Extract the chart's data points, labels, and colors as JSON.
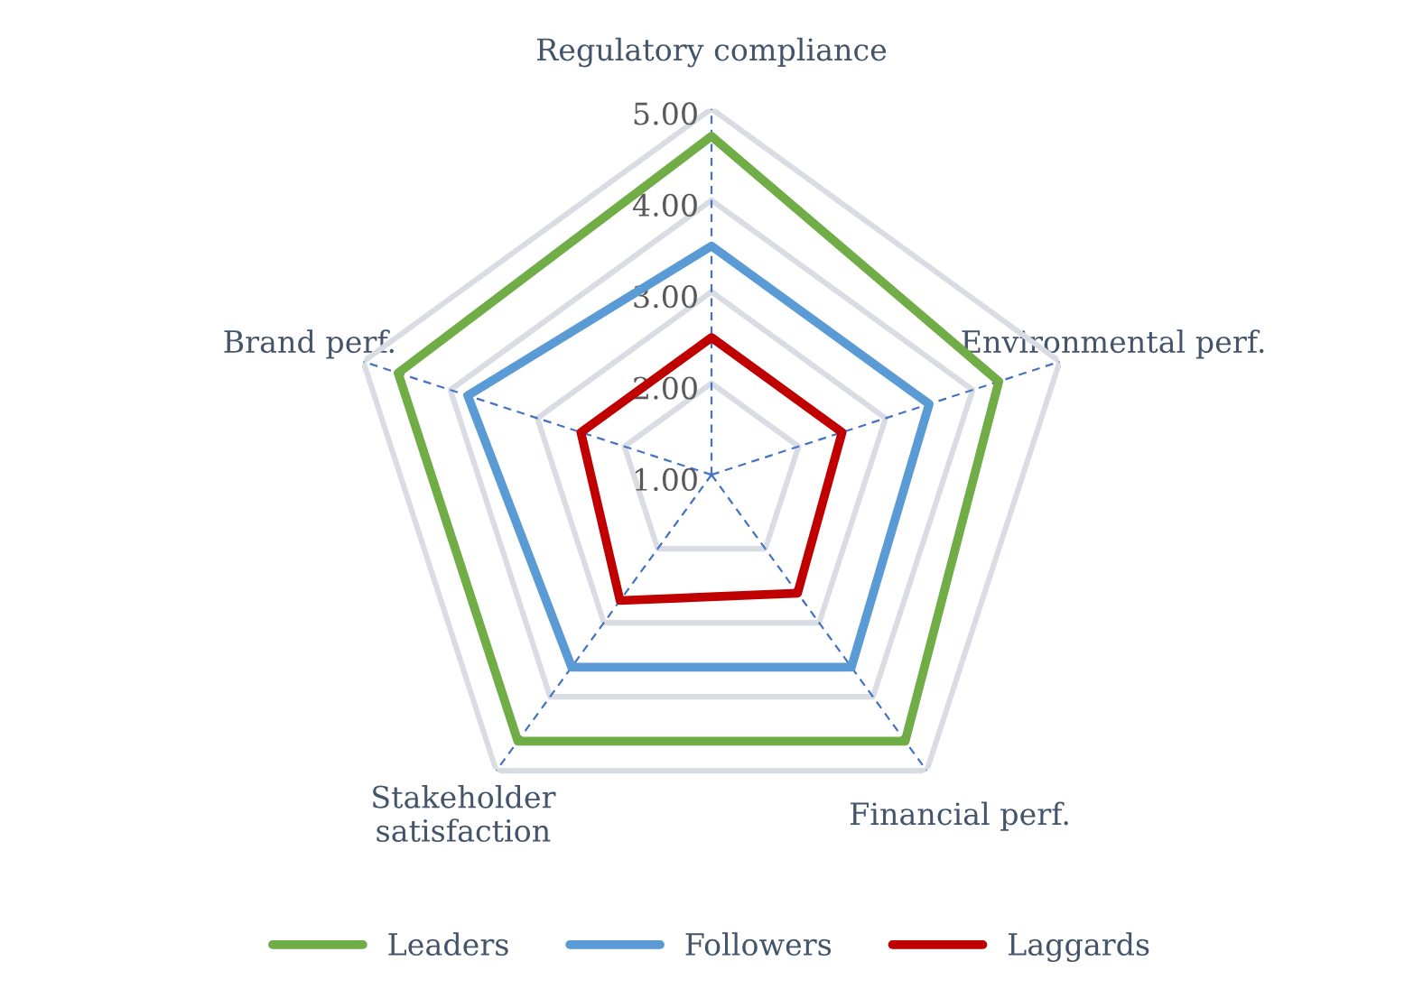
{
  "chart_data": {
    "type": "radar",
    "categories": [
      "Regulatory compliance",
      "Environmental perf.",
      "Financial perf.",
      "Stakeholder\nsatisfaction",
      "Brand perf."
    ],
    "series": [
      {
        "name": "Leaders",
        "color": "#70ad47",
        "values": [
          4.7,
          4.3,
          4.6,
          4.6,
          4.6
        ]
      },
      {
        "name": "Followers",
        "color": "#5b9bd5",
        "values": [
          3.5,
          3.5,
          3.6,
          3.6,
          3.8
        ]
      },
      {
        "name": "Laggards",
        "color": "#c00000",
        "values": [
          2.5,
          2.5,
          2.6,
          2.7,
          2.5
        ]
      }
    ],
    "ylim": [
      1,
      5
    ],
    "yticks": [
      {
        "value": 1,
        "label": "1.00"
      },
      {
        "value": 2,
        "label": "2.00"
      },
      {
        "value": 3,
        "label": "3.00"
      },
      {
        "value": 4,
        "label": "4.00"
      },
      {
        "value": 5,
        "label": "5.00"
      }
    ],
    "grid": true,
    "legend": "bottom",
    "marker": "none",
    "line_style": "solid"
  }
}
